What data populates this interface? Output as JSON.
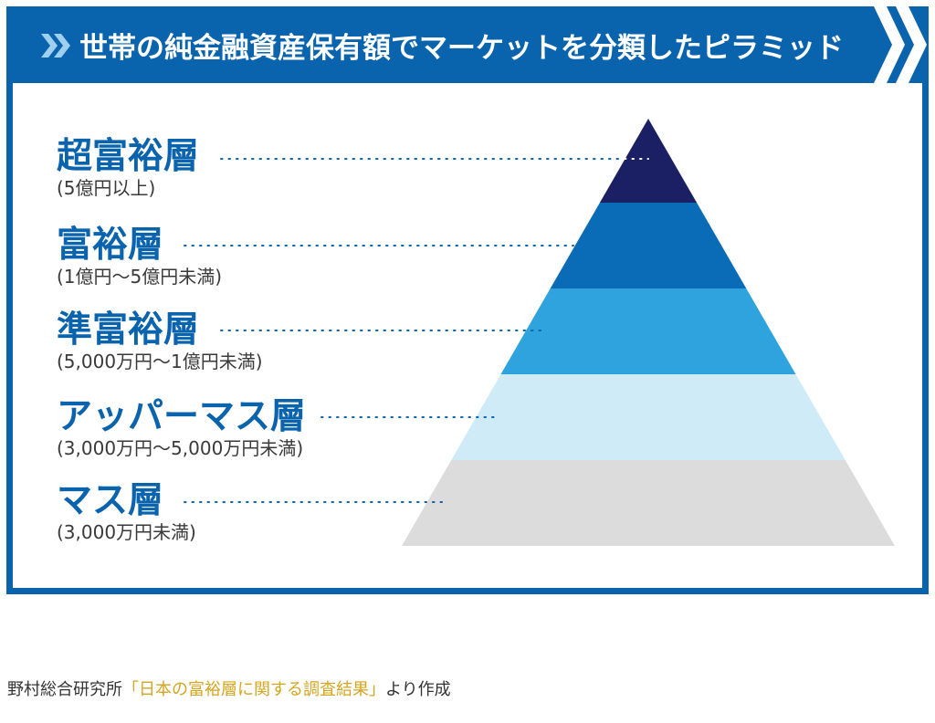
{
  "title": "世帯の純金融資産保有額でマーケットを分類したピラミッド",
  "colors": {
    "brand_blue": "#0a63ad",
    "label_text": "#0a63ad",
    "sub_text": "#3a3a3a",
    "source_highlight": "#d4a520"
  },
  "tiers": [
    {
      "name": "超富裕層",
      "range": "(5億円以上)",
      "color": "#1b1f63"
    },
    {
      "name": "富裕層",
      "range": "(1億円〜5億円未満)",
      "color": "#0a6cb7"
    },
    {
      "name": "準富裕層",
      "range": "(5,000万円〜1億円未満)",
      "color": "#2fa3de"
    },
    {
      "name": "アッパーマス層",
      "range": "(3,000万円〜5,000万円未満)",
      "color": "#d0ebf8"
    },
    {
      "name": "マス層",
      "range": "(3,000万円未満)",
      "color": "#dcdcdc"
    }
  ],
  "source": {
    "prefix": "野村総合研究所",
    "highlight": "「日本の富裕層に関する調査結果」",
    "suffix": "より作成"
  }
}
